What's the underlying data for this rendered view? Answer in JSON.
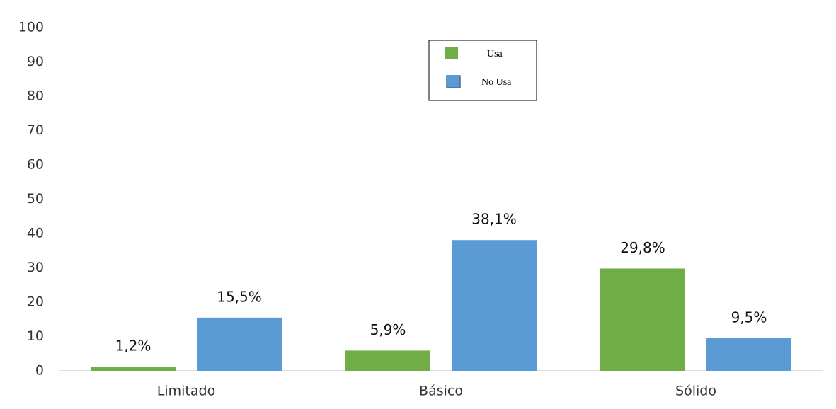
{
  "chart_data": {
    "type": "bar",
    "categories": [
      "Limitado",
      "Básico",
      "Sólido"
    ],
    "series": [
      {
        "name": "Usa",
        "color": "#70ad47",
        "values": [
          1.2,
          5.9,
          29.8
        ],
        "value_labels": [
          "1,2%",
          "5,9%",
          "29,8%"
        ]
      },
      {
        "name": "No Usa",
        "color": "#5b9bd5",
        "values": [
          15.5,
          38.1,
          9.5
        ],
        "value_labels": [
          "15,5%",
          "38,1%",
          "9,5%"
        ]
      }
    ],
    "ylim": [
      0,
      100
    ],
    "yticks": [
      0,
      10,
      20,
      30,
      40,
      50,
      60,
      70,
      80,
      90,
      100
    ],
    "grid": false,
    "legend": "top"
  }
}
